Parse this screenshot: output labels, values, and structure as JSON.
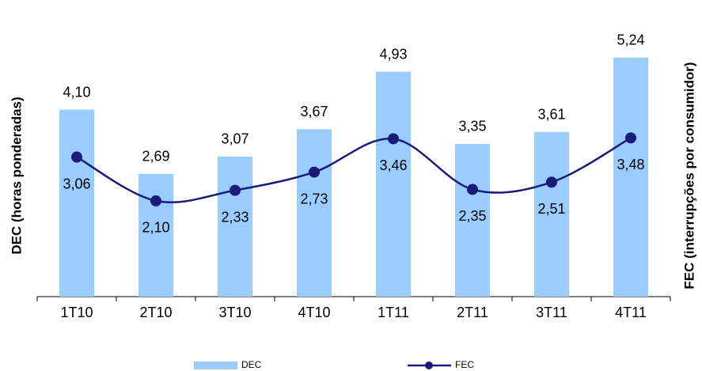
{
  "chart_data": {
    "type": "bar_line",
    "y_label": "DEC  (horas ponderadas)",
    "y2_label": "FEC  (interrupções por consumidor)",
    "categories": [
      "1T10",
      "2T10",
      "3T10",
      "4T10",
      "1T11",
      "2T11",
      "3T11",
      "4T11"
    ],
    "series": [
      {
        "name": "DEC",
        "type": "bar",
        "color": "#99ccff",
        "values": [
          4.1,
          2.69,
          3.07,
          3.67,
          4.93,
          3.35,
          3.61,
          5.24
        ],
        "value_labels": [
          "4,10",
          "2,69",
          "3,07",
          "3,67",
          "4,93",
          "3,35",
          "3,61",
          "5,24"
        ]
      },
      {
        "name": "FEC",
        "type": "line",
        "axis": "y2",
        "color": "#1a1a7a",
        "values": [
          3.06,
          2.1,
          2.33,
          2.73,
          3.46,
          2.35,
          2.51,
          3.48
        ],
        "value_labels": [
          "3,06",
          "2,10",
          "2,33",
          "2,73",
          "3,46",
          "2,35",
          "2,51",
          "3,48"
        ]
      }
    ],
    "ylim": [
      0,
      6
    ],
    "y2lim": [
      0,
      6
    ],
    "legend": "bottom"
  }
}
